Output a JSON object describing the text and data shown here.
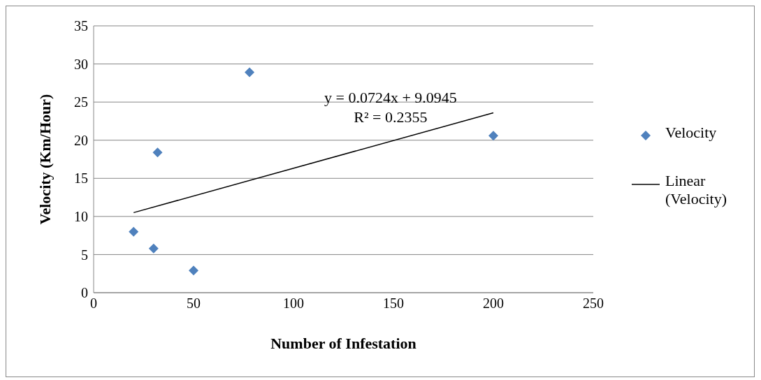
{
  "chart_data": {
    "type": "scatter",
    "xlabel": "Number of Infestation",
    "ylabel": "Velocity (Km/Hour)",
    "xlim": [
      0,
      250
    ],
    "xticks": [
      0,
      50,
      100,
      150,
      200,
      250
    ],
    "ylim": [
      0,
      35
    ],
    "yticks": [
      0,
      5,
      10,
      15,
      20,
      25,
      30,
      35
    ],
    "grid": "y",
    "legend": "right",
    "annotations": [
      "y = 0.0724x + 9.0945",
      "R² = 0.2355"
    ],
    "series": [
      {
        "name": "Velocity",
        "type": "scatter",
        "color": "#4f81bd",
        "marker": "diamond",
        "x": [
          20,
          30,
          32,
          50,
          78,
          200
        ],
        "values": [
          8.0,
          5.8,
          18.4,
          2.9,
          28.9,
          20.6
        ]
      },
      {
        "name": "Linear (Velocity)",
        "type": "line",
        "color": "#000000",
        "marker": "none",
        "x": [
          20,
          200
        ],
        "values": [
          10.5,
          23.6
        ]
      }
    ]
  }
}
